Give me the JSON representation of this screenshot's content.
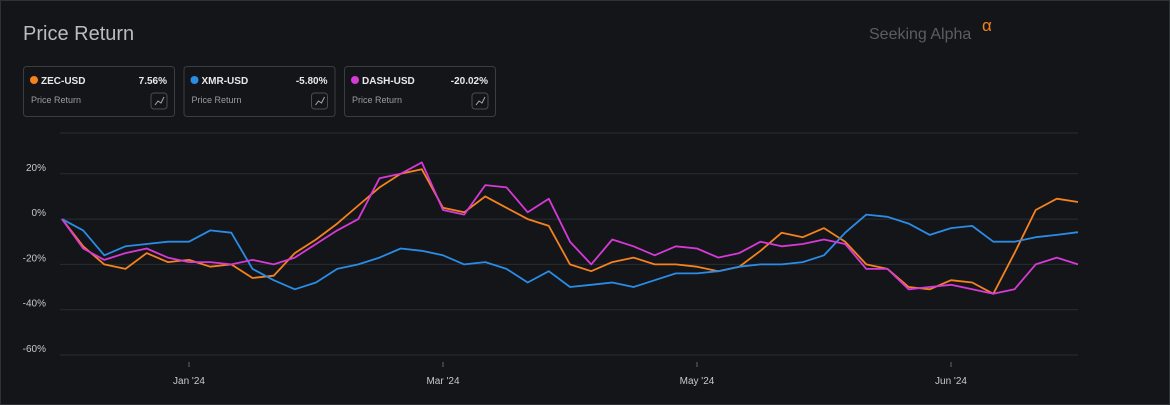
{
  "chart_data": {
    "type": "line",
    "title": "Price Return",
    "brand": "Seeking Alpha",
    "brand_mark": "α",
    "card_subtitle": "Price Return",
    "x": [
      0,
      5,
      10,
      15,
      20,
      25,
      30,
      35,
      40,
      45,
      50,
      55,
      60,
      65,
      70,
      75,
      80,
      85,
      90,
      95,
      100,
      105,
      110,
      115,
      120,
      125,
      130,
      135,
      140,
      145,
      150,
      155,
      160,
      165,
      170,
      175,
      180,
      185,
      190,
      195,
      200,
      205,
      210,
      215,
      220,
      225,
      230,
      235,
      240
    ],
    "xlim": [
      0,
      240
    ],
    "xticks": [
      {
        "value": 30,
        "label": "Jan '24"
      },
      {
        "value": 90,
        "label": "Mar '24"
      },
      {
        "value": 150,
        "label": "May '24"
      },
      {
        "value": 210,
        "label": "Jun '24"
      }
    ],
    "ylim": [
      -60,
      38
    ],
    "yticks": [
      {
        "value": -60,
        "label": "-60%"
      },
      {
        "value": -40,
        "label": "-40%"
      },
      {
        "value": -20,
        "label": "-20%"
      },
      {
        "value": 0,
        "label": "0%"
      },
      {
        "value": 20,
        "label": "20%"
      }
    ],
    "grid": true,
    "series": [
      {
        "name": "ZEC-USD",
        "color": "#f5821f",
        "return_label": "7.56%",
        "values": [
          0,
          -12,
          -20,
          -22,
          -15,
          -19,
          -18,
          -21,
          -20,
          -26,
          -25,
          -15,
          -9,
          -2,
          6,
          14,
          20,
          22,
          5,
          3,
          10,
          5,
          0,
          -3,
          -20,
          -23,
          -19,
          -17,
          -20,
          -20,
          -21,
          -23,
          -21,
          -14,
          -6,
          -8,
          -4,
          -10,
          -20,
          -22,
          -30,
          -31,
          -27,
          -28,
          -33,
          -15,
          4,
          9,
          7.56
        ]
      },
      {
        "name": "XMR-USD",
        "color": "#2b8ce6",
        "return_label": "-5.80%",
        "values": [
          0,
          -5,
          -16,
          -12,
          -11,
          -10,
          -10,
          -5,
          -6,
          -22,
          -27,
          -31,
          -28,
          -22,
          -20,
          -17,
          -13,
          -14,
          -16,
          -20,
          -19,
          -22,
          -28,
          -23,
          -30,
          -29,
          -28,
          -30,
          -27,
          -24,
          -24,
          -23,
          -21,
          -20,
          -20,
          -19,
          -16,
          -6,
          2,
          1,
          -2,
          -7,
          -4,
          -3,
          -10,
          -10,
          -8,
          -7,
          -5.8
        ]
      },
      {
        "name": "DASH-USD",
        "color": "#d63ad6",
        "return_label": "-20.02%",
        "values": [
          0,
          -13,
          -18,
          -15,
          -13,
          -17,
          -19,
          -19,
          -20,
          -18,
          -20,
          -17,
          -11,
          -5,
          0,
          18,
          20,
          25,
          4,
          2,
          15,
          14,
          3,
          9,
          -10,
          -20,
          -9,
          -12,
          -16,
          -12,
          -13,
          -17,
          -15,
          -10,
          -12,
          -11,
          -9,
          -11,
          -22,
          -22,
          -31,
          -30,
          -29,
          -31,
          -33,
          -31,
          -20,
          -17,
          -20.02
        ]
      }
    ]
  }
}
